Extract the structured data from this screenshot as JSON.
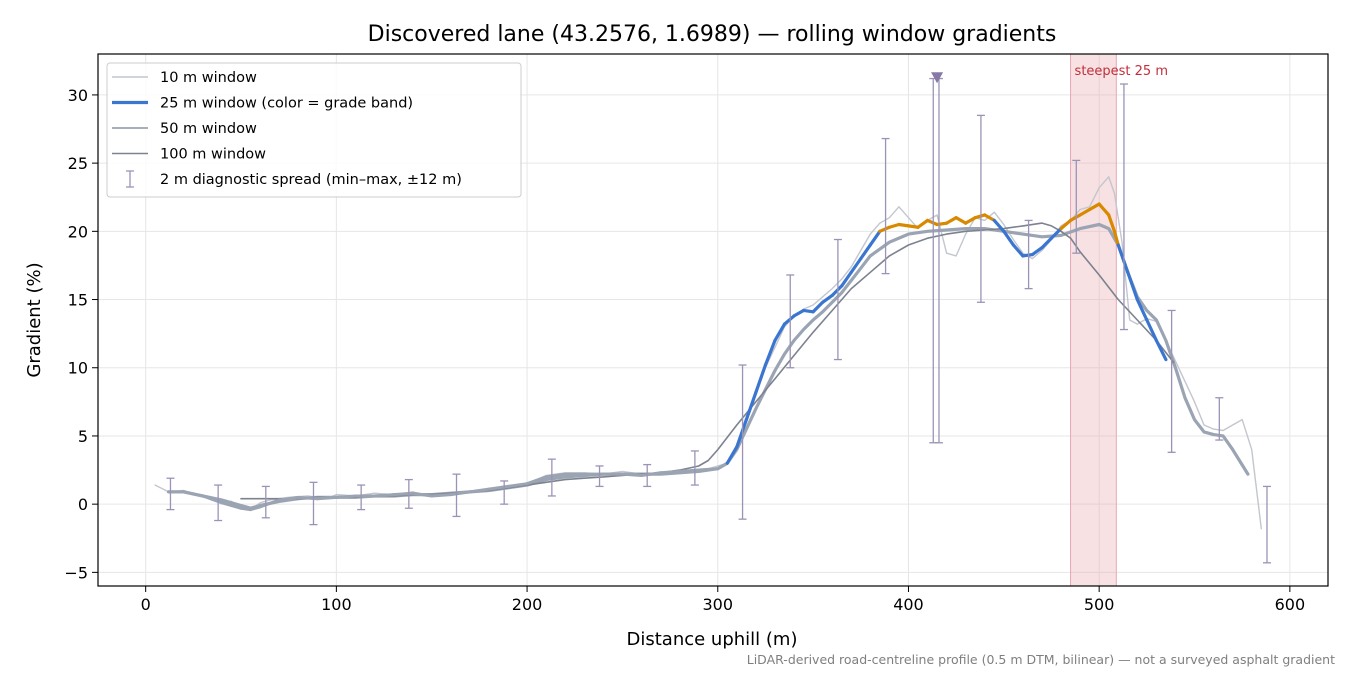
{
  "chart_data": {
    "type": "line",
    "title": "Discovered lane (43.2576, 1.6989) — rolling window gradients",
    "xlabel": "Distance uphill (m)",
    "ylabel": "Gradient (%)",
    "xlim": [
      -25,
      620
    ],
    "ylim": [
      -6,
      33
    ],
    "x_ticks": [
      0,
      100,
      200,
      300,
      400,
      500,
      600
    ],
    "y_ticks": [
      -5,
      0,
      5,
      10,
      15,
      20,
      25,
      30
    ],
    "x_tick_labels": [
      "0",
      "100",
      "200",
      "300",
      "400",
      "500",
      "600"
    ],
    "y_tick_labels": [
      "−5",
      "0",
      "5",
      "10",
      "15",
      "20",
      "25",
      "30"
    ],
    "grid": true,
    "legend_position": "top-left",
    "footnote": "LiDAR-derived road-centreline profile (0.5 m DTM, bilinear) — not a surveyed asphalt gradient",
    "colors": {
      "w10": "#c2c6ce",
      "w25_blue": "#3a76d0",
      "w25_orange": "#d98900",
      "w50": "#9aa4b2",
      "w100": "#7d828f",
      "errorbar": "#9b93b6",
      "marker": "#8878a8",
      "highlight": "#e8a8b0",
      "highlight_label": "#c0303c"
    },
    "legend": [
      {
        "key": "w10",
        "label": "10 m window"
      },
      {
        "key": "w25",
        "label": "25 m window (color = grade band)"
      },
      {
        "key": "w50",
        "label": "50 m window"
      },
      {
        "key": "w100",
        "label": "100 m window"
      },
      {
        "key": "err",
        "label": "2 m diagnostic spread (min–max, ±12 m)"
      }
    ],
    "highlight": {
      "x0": 485,
      "x1": 509,
      "label": "steepest 25 m"
    },
    "marker": {
      "x": 415,
      "y": 31.3
    },
    "series": [
      {
        "key": "w10",
        "x": [
          5,
          12,
          20,
          30,
          38,
          45,
          50,
          55,
          60,
          65,
          75,
          85,
          95,
          100,
          110,
          120,
          130,
          140,
          150,
          160,
          170,
          180,
          190,
          200,
          210,
          220,
          230,
          240,
          250,
          260,
          270,
          280,
          290,
          300,
          305,
          310,
          315,
          320,
          325,
          330,
          335,
          340,
          345,
          350,
          355,
          360,
          365,
          370,
          375,
          380,
          385,
          390,
          395,
          400,
          405,
          410,
          415,
          420,
          425,
          430,
          435,
          440,
          445,
          450,
          455,
          460,
          465,
          470,
          475,
          480,
          485,
          490,
          495,
          500,
          505,
          508,
          512,
          516,
          520,
          525,
          530,
          535,
          540,
          545,
          550,
          555,
          560,
          565,
          570,
          575,
          580,
          585
        ],
        "y": [
          1.4,
          0.9,
          1.0,
          0.6,
          0.3,
          0.2,
          -0.3,
          -0.4,
          0.1,
          0.3,
          0.5,
          0.6,
          0.4,
          0.7,
          0.6,
          0.8,
          0.7,
          0.9,
          0.6,
          0.8,
          0.9,
          1.1,
          1.3,
          1.5,
          2.1,
          2.3,
          2.3,
          2.2,
          2.4,
          2.2,
          2.3,
          2.4,
          2.4,
          2.8,
          3.0,
          4.2,
          6.0,
          8.0,
          10.0,
          11.5,
          13.0,
          13.8,
          14.3,
          14.6,
          15.2,
          15.8,
          16.5,
          17.4,
          18.6,
          19.8,
          20.6,
          21.0,
          21.8,
          21.0,
          20.2,
          20.8,
          21.2,
          18.4,
          18.2,
          19.8,
          21.0,
          20.8,
          21.4,
          20.5,
          19.4,
          18.4,
          18.0,
          18.6,
          19.4,
          20.4,
          20.8,
          21.6,
          21.8,
          23.2,
          24.0,
          22.8,
          19.2,
          13.5,
          13.2,
          13.6,
          13.4,
          12.0,
          10.5,
          9.0,
          7.5,
          5.8,
          5.5,
          5.4,
          5.8,
          6.2,
          4.0,
          -1.8
        ]
      },
      {
        "key": "w50",
        "x": [
          12,
          20,
          30,
          40,
          50,
          55,
          60,
          70,
          80,
          90,
          100,
          110,
          120,
          130,
          140,
          150,
          160,
          170,
          180,
          190,
          200,
          210,
          220,
          230,
          240,
          250,
          260,
          270,
          280,
          290,
          300,
          305,
          310,
          315,
          320,
          325,
          330,
          335,
          340,
          345,
          350,
          355,
          360,
          365,
          370,
          375,
          380,
          390,
          400,
          410,
          420,
          430,
          440,
          450,
          460,
          470,
          480,
          490,
          500,
          505,
          510,
          515,
          520,
          525,
          530,
          535,
          540,
          545,
          550,
          555,
          560,
          565,
          570,
          578
        ],
        "y": [
          0.9,
          0.9,
          0.6,
          0.3,
          -0.1,
          -0.3,
          -0.1,
          0.2,
          0.4,
          0.5,
          0.5,
          0.5,
          0.6,
          0.6,
          0.7,
          0.7,
          0.8,
          0.9,
          1.0,
          1.2,
          1.4,
          1.8,
          2.0,
          2.1,
          2.2,
          2.2,
          2.2,
          2.2,
          2.3,
          2.4,
          2.6,
          3.0,
          4.0,
          5.5,
          7.0,
          8.4,
          9.8,
          11.0,
          12.0,
          12.8,
          13.5,
          14.1,
          14.8,
          15.5,
          16.4,
          17.3,
          18.2,
          19.2,
          19.8,
          20.0,
          20.1,
          20.2,
          20.2,
          20.0,
          19.8,
          19.6,
          19.7,
          20.2,
          20.5,
          20.2,
          19.0,
          17.0,
          15.2,
          14.2,
          13.5,
          12.0,
          10.0,
          7.8,
          6.2,
          5.3,
          5.1,
          5.0,
          4.0,
          2.2
        ]
      },
      {
        "key": "w100",
        "x": [
          50,
          60,
          70,
          80,
          90,
          100,
          110,
          120,
          130,
          140,
          150,
          160,
          170,
          180,
          190,
          200,
          210,
          220,
          230,
          240,
          250,
          260,
          270,
          280,
          290,
          295,
          300,
          310,
          320,
          330,
          340,
          350,
          360,
          370,
          380,
          390,
          400,
          410,
          420,
          430,
          440,
          450,
          460,
          470,
          475,
          480,
          485,
          490,
          500,
          510,
          520,
          530,
          539
        ],
        "y": [
          0.4,
          0.4,
          0.4,
          0.4,
          0.5,
          0.5,
          0.5,
          0.6,
          0.6,
          0.7,
          0.7,
          0.8,
          0.9,
          1.0,
          1.2,
          1.4,
          1.6,
          1.8,
          1.9,
          2.0,
          2.1,
          2.2,
          2.3,
          2.5,
          2.8,
          3.2,
          4.0,
          5.8,
          7.5,
          9.2,
          10.9,
          12.6,
          14.2,
          15.8,
          17.0,
          18.2,
          19.0,
          19.5,
          19.8,
          20.0,
          20.1,
          20.2,
          20.4,
          20.6,
          20.4,
          20.0,
          19.5,
          18.5,
          16.8,
          15.0,
          13.5,
          12.0,
          10.4
        ]
      },
      {
        "key": "w25",
        "x": [
          12,
          20,
          30,
          40,
          50,
          55,
          60,
          70,
          80,
          90,
          100,
          110,
          120,
          130,
          140,
          150,
          160,
          170,
          180,
          190,
          200,
          210,
          220,
          230,
          240,
          250,
          260,
          270,
          280,
          290,
          300,
          305,
          310,
          315,
          320,
          325,
          330,
          335,
          340,
          345,
          350,
          355,
          360,
          365,
          370,
          375,
          380,
          385,
          390,
          395,
          400,
          405,
          410,
          415,
          420,
          425,
          430,
          435,
          440,
          445,
          450,
          455,
          460,
          465,
          470,
          475,
          480,
          485,
          490,
          495,
          500,
          505,
          508,
          510,
          515,
          520,
          525,
          530,
          535
        ],
        "y": [
          0.9,
          0.9,
          0.6,
          0.1,
          -0.3,
          -0.4,
          -0.2,
          0.3,
          0.5,
          0.4,
          0.5,
          0.6,
          0.6,
          0.7,
          0.8,
          0.6,
          0.7,
          0.9,
          1.1,
          1.3,
          1.5,
          2.0,
          2.2,
          2.2,
          2.2,
          2.2,
          2.1,
          2.3,
          2.4,
          2.5,
          2.6,
          3.0,
          4.2,
          6.2,
          8.2,
          10.2,
          12.0,
          13.2,
          13.8,
          14.2,
          14.1,
          14.8,
          15.3,
          16.0,
          17.0,
          18.0,
          19.0,
          20.0,
          20.3,
          20.5,
          20.4,
          20.3,
          20.8,
          20.5,
          20.6,
          21.0,
          20.6,
          21.0,
          21.2,
          20.8,
          20.0,
          19.0,
          18.2,
          18.3,
          18.8,
          19.5,
          20.2,
          20.8,
          21.2,
          21.6,
          22.0,
          21.2,
          20.0,
          19.0,
          17.0,
          15.0,
          13.5,
          12.0,
          10.6
        ],
        "orange_ranges": [
          [
            385,
            445
          ],
          [
            480,
            510
          ]
        ]
      }
    ],
    "errorbars": [
      {
        "x": 13,
        "min": -0.4,
        "max": 1.9
      },
      {
        "x": 38,
        "min": -1.2,
        "max": 1.4
      },
      {
        "x": 63,
        "min": -1.0,
        "max": 1.3
      },
      {
        "x": 88,
        "min": -1.5,
        "max": 1.6
      },
      {
        "x": 113,
        "min": -0.4,
        "max": 1.4
      },
      {
        "x": 138,
        "min": -0.3,
        "max": 1.8
      },
      {
        "x": 163,
        "min": -0.9,
        "max": 2.2
      },
      {
        "x": 188,
        "min": 0.0,
        "max": 1.7
      },
      {
        "x": 213,
        "min": 0.6,
        "max": 3.3
      },
      {
        "x": 238,
        "min": 1.3,
        "max": 2.8
      },
      {
        "x": 263,
        "min": 1.3,
        "max": 2.9
      },
      {
        "x": 288,
        "min": 1.4,
        "max": 3.9
      },
      {
        "x": 313,
        "min": -1.1,
        "max": 10.2
      },
      {
        "x": 338,
        "min": 10.0,
        "max": 16.8
      },
      {
        "x": 363,
        "min": 10.6,
        "max": 19.4
      },
      {
        "x": 388,
        "min": 16.9,
        "max": 26.8
      },
      {
        "x": 413,
        "min": 4.5,
        "max": 31.2
      },
      {
        "x": 416,
        "min": 4.5,
        "max": 31.2
      },
      {
        "x": 438,
        "min": 14.8,
        "max": 28.5
      },
      {
        "x": 463,
        "min": 15.8,
        "max": 20.8
      },
      {
        "x": 488,
        "min": 18.4,
        "max": 25.2
      },
      {
        "x": 513,
        "min": 12.8,
        "max": 30.8
      },
      {
        "x": 538,
        "min": 3.8,
        "max": 14.2
      },
      {
        "x": 563,
        "min": 4.7,
        "max": 7.8
      },
      {
        "x": 588,
        "min": -4.3,
        "max": 1.3
      }
    ]
  }
}
